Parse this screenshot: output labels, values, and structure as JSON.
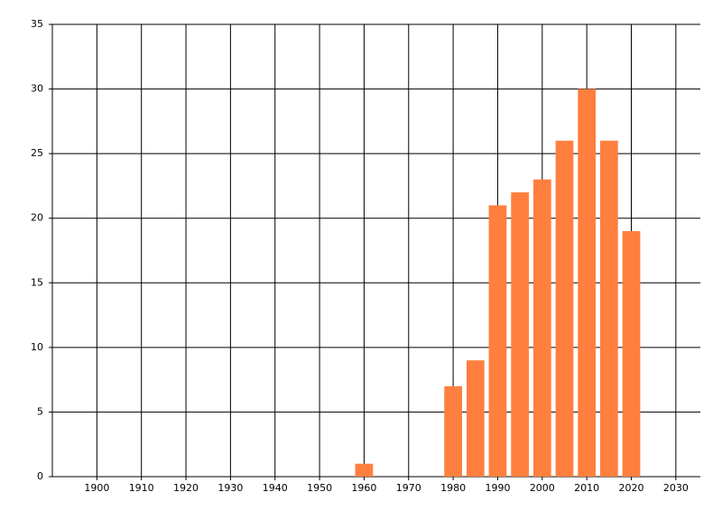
{
  "chart_data": {
    "type": "bar",
    "x": [
      1960,
      1980,
      1985,
      1990,
      1995,
      2000,
      2005,
      2010,
      2015,
      2020
    ],
    "values": [
      1,
      7,
      9,
      21,
      22,
      23,
      26,
      30,
      26,
      19
    ],
    "color": "#ff7f3f",
    "xlim": [
      1890,
      2035.5
    ],
    "xticks": [
      1900,
      1910,
      1920,
      1930,
      1940,
      1950,
      1960,
      1970,
      1980,
      1990,
      2000,
      2010,
      2020,
      2030
    ],
    "ylim": [
      0,
      35
    ],
    "yticks": [
      0,
      5,
      10,
      15,
      20,
      25,
      30,
      35
    ],
    "grid": true
  }
}
